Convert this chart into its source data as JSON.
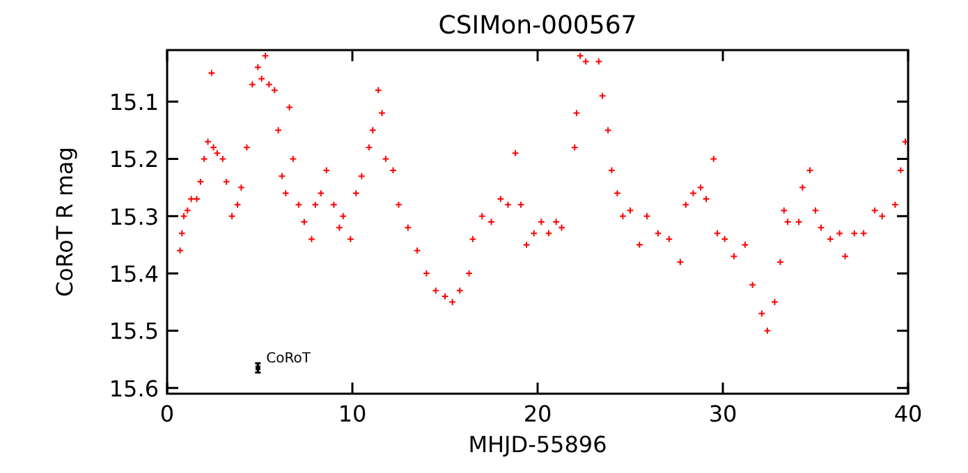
{
  "chart_data": {
    "type": "scatter",
    "title": "CSIMon-000567",
    "xlabel": "MHJD-55896",
    "ylabel": "CoRoT R mag",
    "xlim": [
      0,
      40
    ],
    "xticks": [
      0,
      10,
      20,
      30,
      40
    ],
    "ylim": [
      15.61,
      15.01
    ],
    "yticks": [
      15.1,
      15.2,
      15.3,
      15.4,
      15.5,
      15.6
    ],
    "marker": "cross",
    "grid": false,
    "series": [
      {
        "color": "#ff0000",
        "x": [
          0.7,
          0.8,
          0.9,
          1.1,
          1.3,
          1.6,
          1.8,
          2.0,
          2.2,
          2.4,
          2.5,
          2.7,
          3.0,
          3.2,
          3.5,
          3.8,
          4.0,
          4.3,
          4.6,
          4.9,
          5.1,
          5.3,
          5.5,
          5.8,
          6.0,
          6.2,
          6.4,
          6.6,
          6.8,
          7.1,
          7.4,
          7.8,
          8.0,
          8.3,
          8.6,
          9.0,
          9.3,
          9.5,
          9.9,
          10.2,
          10.5,
          10.9,
          11.1,
          11.4,
          11.6,
          11.8,
          12.2,
          12.5,
          13.0,
          13.5,
          14.0,
          14.5,
          15.0,
          15.4,
          15.8,
          16.3,
          16.5,
          17.0,
          17.5,
          18.0,
          18.4,
          18.8,
          19.1,
          19.4,
          19.8,
          20.2,
          20.6,
          21.0,
          21.3,
          22.0,
          22.1,
          22.3,
          22.6,
          23.3,
          23.5,
          23.8,
          24.0,
          24.3,
          24.6,
          25.0,
          25.5,
          25.9,
          26.5,
          27.1,
          27.7,
          28.0,
          28.4,
          28.8,
          29.1,
          29.5,
          29.7,
          30.1,
          30.6,
          31.2,
          31.6,
          32.1,
          32.4,
          32.8,
          33.1,
          33.3,
          33.5,
          34.1,
          34.3,
          34.7,
          35.0,
          35.3,
          35.8,
          36.3,
          36.6,
          37.1,
          37.6,
          38.2,
          38.6,
          39.3,
          39.6,
          39.85
        ],
        "values": [
          15.36,
          15.33,
          15.3,
          15.29,
          15.27,
          15.27,
          15.24,
          15.2,
          15.17,
          15.05,
          15.18,
          15.19,
          15.2,
          15.24,
          15.3,
          15.28,
          15.25,
          15.18,
          15.07,
          15.04,
          15.06,
          15.02,
          15.07,
          15.08,
          15.15,
          15.23,
          15.26,
          15.11,
          15.2,
          15.28,
          15.31,
          15.34,
          15.28,
          15.26,
          15.22,
          15.28,
          15.32,
          15.3,
          15.34,
          15.26,
          15.23,
          15.18,
          15.15,
          15.08,
          15.12,
          15.2,
          15.22,
          15.28,
          15.32,
          15.36,
          15.4,
          15.43,
          15.44,
          15.45,
          15.43,
          15.4,
          15.34,
          15.3,
          15.31,
          15.27,
          15.28,
          15.19,
          15.28,
          15.35,
          15.33,
          15.31,
          15.33,
          15.31,
          15.32,
          15.18,
          15.12,
          15.02,
          15.03,
          15.03,
          15.09,
          15.15,
          15.22,
          15.26,
          15.3,
          15.29,
          15.35,
          15.3,
          15.33,
          15.34,
          15.38,
          15.28,
          15.26,
          15.25,
          15.27,
          15.2,
          15.33,
          15.34,
          15.37,
          15.35,
          15.42,
          15.47,
          15.5,
          15.45,
          15.38,
          15.29,
          15.31,
          15.31,
          15.25,
          15.22,
          15.29,
          15.32,
          15.34,
          15.33,
          15.37,
          15.33,
          15.33,
          15.29,
          15.3,
          15.28,
          15.22,
          15.17
        ]
      },
      {
        "name": "CoRoT",
        "color": "#000000",
        "x": [
          4.9
        ],
        "values": [
          15.565
        ],
        "errors": [
          0.008
        ],
        "marker": "square"
      }
    ]
  }
}
